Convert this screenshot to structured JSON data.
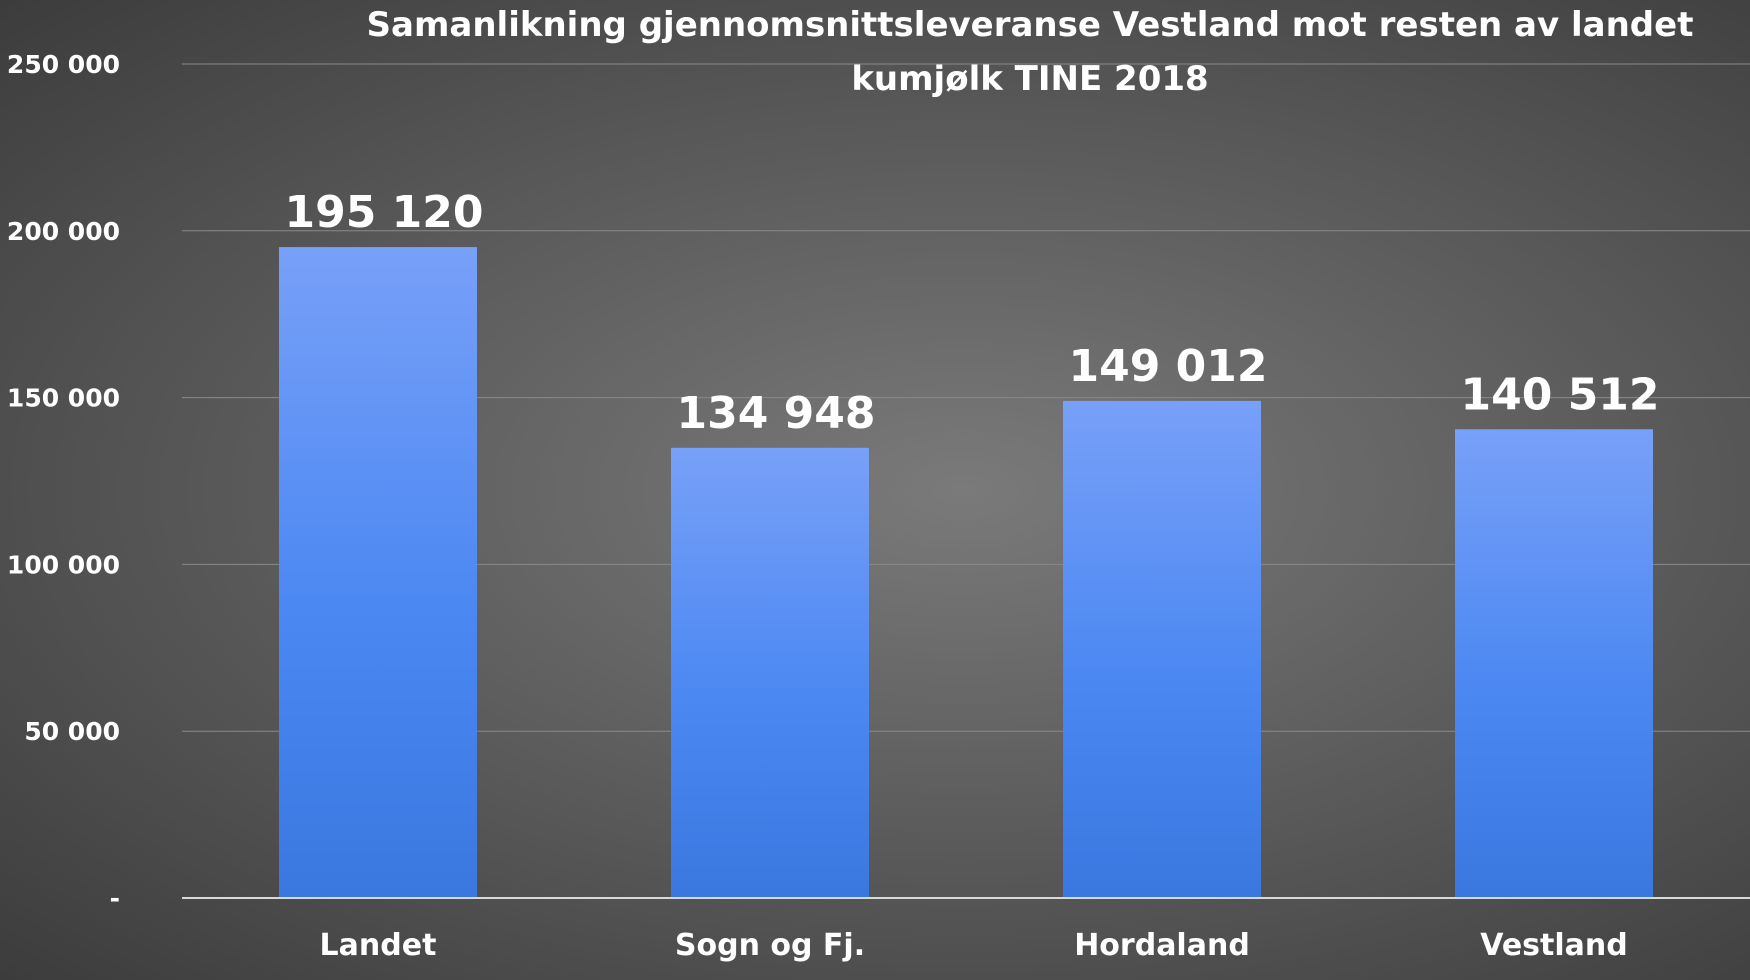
{
  "chart_data": {
    "type": "bar",
    "title_lines": [
      "Samanlikning gjennomsnittsleveranse Vestland mot resten av landet",
      "kumjølk TINE 2018"
    ],
    "categories": [
      "Landet",
      "Sogn og Fj.",
      "Hordaland",
      "Vestland"
    ],
    "values": [
      195120,
      134948,
      149012,
      140512
    ],
    "data_labels": [
      "195 120",
      "134 948",
      "149 012",
      "140 512"
    ],
    "ylim": [
      0,
      250000
    ],
    "yticks": [
      0,
      50000,
      100000,
      150000,
      200000,
      250000
    ],
    "ytick_labels": [
      "-",
      "50 000",
      "100 000",
      "150 000",
      "200 000",
      "250 000"
    ],
    "xlabel": "",
    "ylabel": "",
    "grid": true,
    "legend": "none",
    "bar_color_top": "#78a0f8",
    "bar_color_bottom": "#3a78e0",
    "text_color": "#ffffff"
  }
}
